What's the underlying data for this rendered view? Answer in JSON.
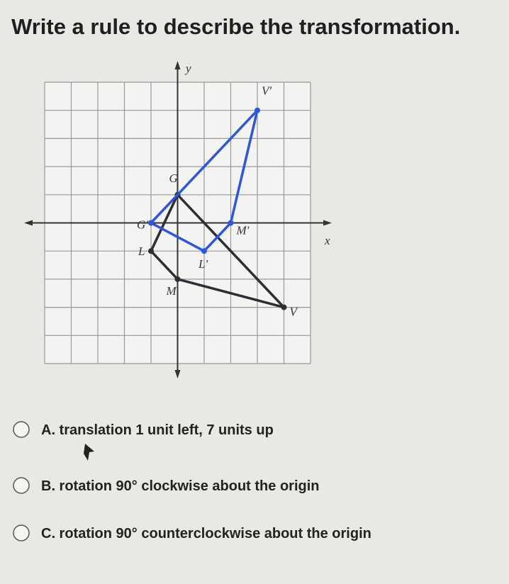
{
  "question": "Write a rule to describe the transformation.",
  "graph": {
    "x_axis_label": "x",
    "y_axis_label": "y",
    "xlim": [
      -5,
      5
    ],
    "ylim": [
      -5,
      5
    ],
    "original": {
      "color": "#2d2d35",
      "vertices": [
        {
          "label": "G",
          "x": 0,
          "y": 1
        },
        {
          "label": "L",
          "x": -1,
          "y": -1
        },
        {
          "label": "M",
          "x": 0,
          "y": -2
        },
        {
          "label": "V",
          "x": 4,
          "y": -3
        }
      ]
    },
    "image": {
      "color": "#2e56d8",
      "vertices": [
        {
          "label": "G'",
          "x": -1,
          "y": 0
        },
        {
          "label": "L'",
          "x": 1,
          "y": -1
        },
        {
          "label": "M'",
          "x": 2,
          "y": 0
        },
        {
          "label": "V'",
          "x": 3,
          "y": 4
        }
      ]
    }
  },
  "options": [
    "A. translation 1 unit left, 7 units up",
    "B. rotation 90° clockwise about the origin",
    "C. rotation 90° counterclockwise about the origin"
  ]
}
